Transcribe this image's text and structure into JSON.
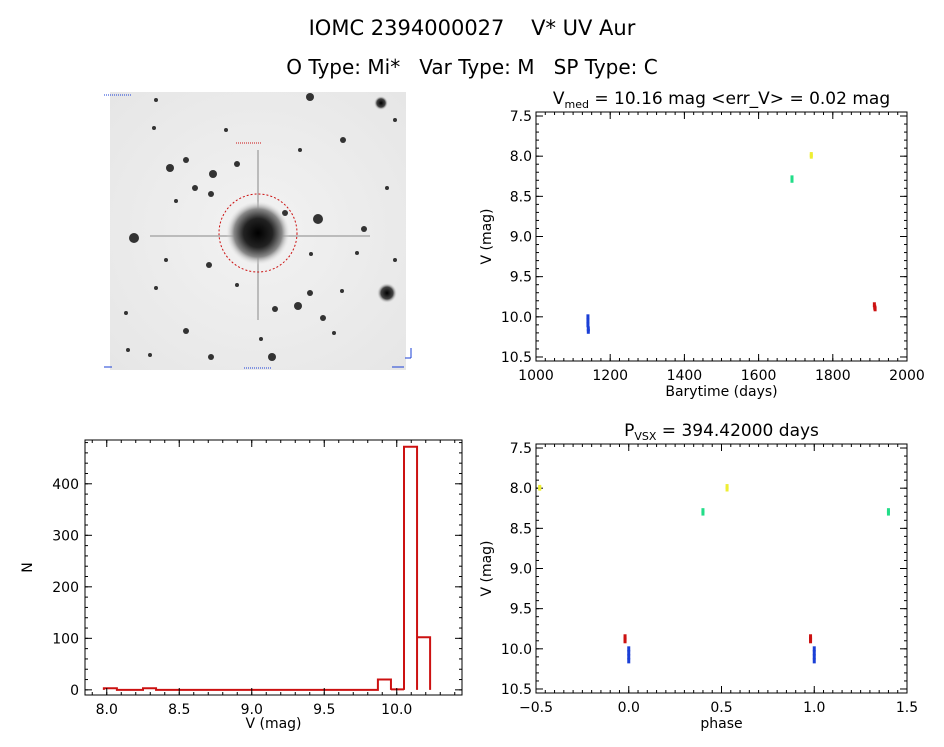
{
  "header": {
    "line1_id": "IOMC 2394000027",
    "line1_name": "V* UV Aur",
    "line2_otype": "O Type: Mi*",
    "line2_vartype": "Var Type: M",
    "line2_sptype": "SP Type: C"
  },
  "colors": {
    "blue": "#1a3fd6",
    "red": "#cc1111",
    "green": "#22dd88",
    "yellow": "#eeee33",
    "hist": "#cc1111"
  },
  "chart_data": [
    {
      "type": "scatter",
      "id": "lightcurve",
      "title_main": "V",
      "title_sub": "med",
      "title_rest": " = 10.16 mag <err_V> = 0.02 mag",
      "xlabel": "Barytime (days)",
      "ylabel": "V (mag)",
      "xlim": [
        1000,
        2000
      ],
      "ylim": [
        10.55,
        7.45
      ],
      "y_inverted": true,
      "xticks": [
        1000,
        1200,
        1400,
        1600,
        1800,
        2000
      ],
      "xtick_labels": [
        "1000",
        "1200",
        "1400",
        "1600",
        "1800",
        "2000"
      ],
      "yticks": [
        7.5,
        8.0,
        8.5,
        9.0,
        9.5,
        10.0,
        10.5
      ],
      "ytick_labels": [
        "7.5",
        "8.0",
        "8.5",
        "9.0",
        "9.5",
        "10.0",
        "10.5"
      ],
      "series": [
        {
          "color": "blue",
          "points": [
            [
              1140,
              10.0
            ],
            [
              1140,
              10.05
            ],
            [
              1140,
              10.1
            ],
            [
              1141,
              10.15
            ],
            [
              1141,
              10.18
            ]
          ]
        },
        {
          "color": "green",
          "points": [
            [
              1690,
              8.27
            ],
            [
              1690,
              8.3
            ]
          ]
        },
        {
          "color": "yellow",
          "points": [
            [
              1742,
              7.98
            ],
            [
              1742,
              8.0
            ]
          ]
        },
        {
          "color": "red",
          "points": [
            [
              1912,
              9.85
            ],
            [
              1913,
              9.88
            ],
            [
              1914,
              9.9
            ]
          ]
        }
      ]
    },
    {
      "type": "scatter",
      "id": "phased",
      "title_main": "P",
      "title_sub": "VSX",
      "title_rest": " = 394.42000 days",
      "xlabel": "phase",
      "ylabel": "V (mag)",
      "xlim": [
        -0.5,
        1.5
      ],
      "ylim": [
        10.55,
        7.45
      ],
      "y_inverted": true,
      "xticks": [
        -0.5,
        0.0,
        0.5,
        1.0,
        1.5
      ],
      "xtick_labels": [
        "−0.5",
        "0.0",
        "0.5",
        "1.0",
        "1.5"
      ],
      "yticks": [
        7.5,
        8.0,
        8.5,
        9.0,
        9.5,
        10.0,
        10.5
      ],
      "ytick_labels": [
        "7.5",
        "8.0",
        "8.5",
        "9.0",
        "9.5",
        "10.0",
        "10.5"
      ],
      "series": [
        {
          "color": "blue",
          "points": [
            [
              0.0,
              10.0
            ],
            [
              0.0,
              10.05
            ],
            [
              0.0,
              10.1
            ],
            [
              0.0,
              10.15
            ],
            [
              1.0,
              10.0
            ],
            [
              1.0,
              10.05
            ],
            [
              1.0,
              10.1
            ],
            [
              1.0,
              10.15
            ]
          ]
        },
        {
          "color": "red",
          "points": [
            [
              -0.02,
              9.85
            ],
            [
              -0.02,
              9.88
            ],
            [
              -0.02,
              9.9
            ],
            [
              0.98,
              9.85
            ],
            [
              0.98,
              9.88
            ],
            [
              0.98,
              9.9
            ]
          ]
        },
        {
          "color": "green",
          "points": [
            [
              0.4,
              8.28
            ],
            [
              0.4,
              8.31
            ],
            [
              1.4,
              8.28
            ],
            [
              1.4,
              8.31
            ]
          ]
        },
        {
          "color": "yellow",
          "points": [
            [
              -0.48,
              7.99
            ],
            [
              -0.48,
              8.0
            ],
            [
              0.53,
              7.98
            ],
            [
              0.53,
              8.01
            ]
          ]
        }
      ]
    },
    {
      "type": "bar",
      "id": "histogram",
      "xlabel": "V (mag)",
      "ylabel": "N",
      "xlim": [
        7.85,
        10.45
      ],
      "ylim": [
        -10,
        485
      ],
      "xticks": [
        8.0,
        8.5,
        9.0,
        9.5,
        10.0
      ],
      "xtick_labels": [
        "8.0",
        "8.5",
        "9.0",
        "9.5",
        "10.0"
      ],
      "yticks": [
        0,
        100,
        200,
        300,
        400
      ],
      "ytick_labels": [
        "0",
        "100",
        "200",
        "300",
        "400"
      ],
      "bins": [
        {
          "x0": 7.98,
          "x1": 8.07,
          "value": 3
        },
        {
          "x0": 8.07,
          "x1": 8.16,
          "value": 0
        },
        {
          "x0": 8.16,
          "x1": 8.25,
          "value": 0
        },
        {
          "x0": 8.25,
          "x1": 8.34,
          "value": 3
        },
        {
          "x0": 8.34,
          "x1": 8.43,
          "value": 0
        },
        {
          "x0": 8.43,
          "x1": 8.52,
          "value": 0
        },
        {
          "x0": 8.52,
          "x1": 8.61,
          "value": 0
        },
        {
          "x0": 8.61,
          "x1": 8.7,
          "value": 0
        },
        {
          "x0": 8.7,
          "x1": 8.79,
          "value": 0
        },
        {
          "x0": 8.79,
          "x1": 8.88,
          "value": 0
        },
        {
          "x0": 8.88,
          "x1": 8.97,
          "value": 0
        },
        {
          "x0": 8.97,
          "x1": 9.06,
          "value": 0
        },
        {
          "x0": 9.06,
          "x1": 9.15,
          "value": 0
        },
        {
          "x0": 9.15,
          "x1": 9.24,
          "value": 0
        },
        {
          "x0": 9.24,
          "x1": 9.33,
          "value": 0
        },
        {
          "x0": 9.33,
          "x1": 9.42,
          "value": 0
        },
        {
          "x0": 9.42,
          "x1": 9.51,
          "value": 0
        },
        {
          "x0": 9.51,
          "x1": 9.6,
          "value": 0
        },
        {
          "x0": 9.6,
          "x1": 9.69,
          "value": 0
        },
        {
          "x0": 9.69,
          "x1": 9.78,
          "value": 0
        },
        {
          "x0": 9.78,
          "x1": 9.87,
          "value": 0
        },
        {
          "x0": 9.87,
          "x1": 9.96,
          "value": 20
        },
        {
          "x0": 9.96,
          "x1": 10.05,
          "value": 1
        },
        {
          "x0": 10.05,
          "x1": 10.14,
          "value": 472
        },
        {
          "x0": 10.14,
          "x1": 10.23,
          "value": 102
        }
      ]
    }
  ],
  "finder_chart": {
    "source": "Finder chart",
    "star_marker_color": "#cc1111"
  }
}
